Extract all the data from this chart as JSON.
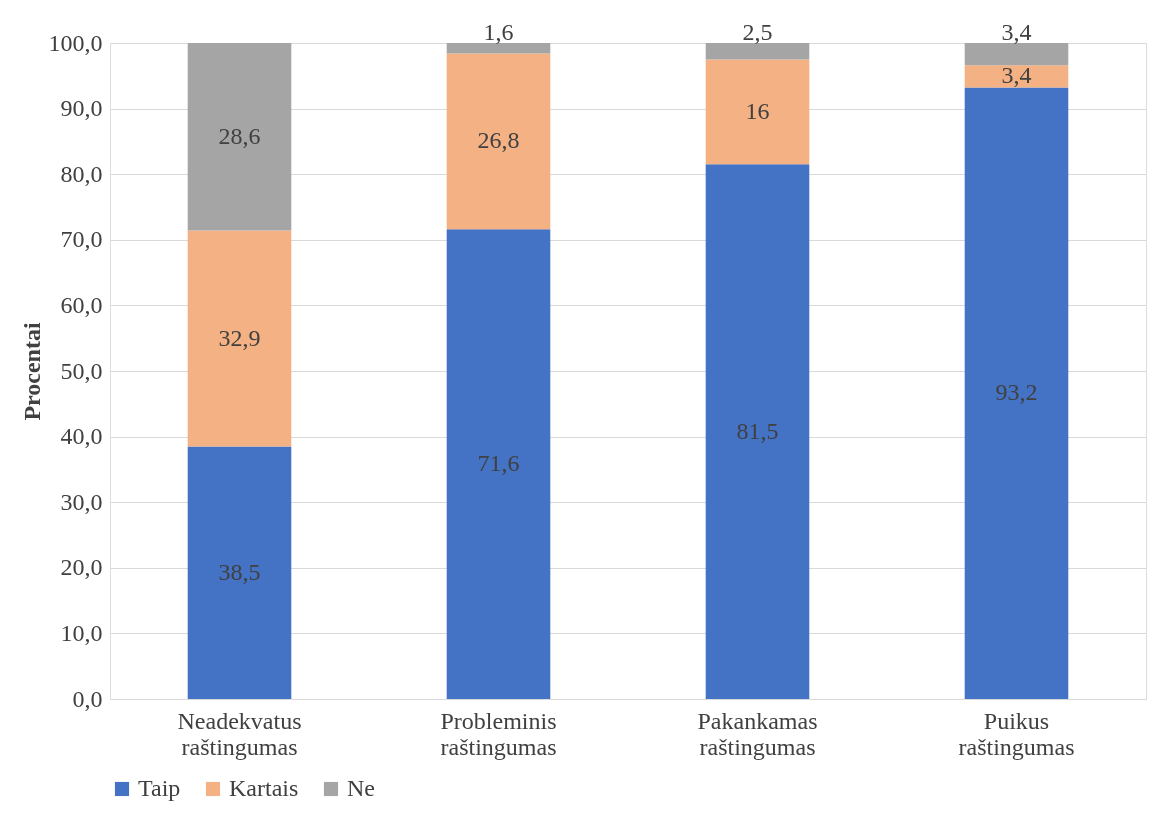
{
  "chart_data": {
    "type": "bar",
    "stacked": true,
    "ylabel": "Procentai",
    "categories": [
      "Neadekvatus raštingumas",
      "Probleminis raštingumas",
      "Pakankamas raštingumas",
      "Puikus raštingumas"
    ],
    "series": [
      {
        "name": "Taip",
        "color": "#4472c4",
        "values": [
          38.5,
          71.6,
          81.5,
          93.2
        ],
        "value_labels": [
          "38,5",
          "71,6",
          "81,5",
          "93,2"
        ]
      },
      {
        "name": "Kartais",
        "color": "#f4b183",
        "values": [
          32.9,
          26.8,
          16,
          3.4
        ],
        "value_labels": [
          "32,9",
          "26,8",
          "16",
          "3,4"
        ]
      },
      {
        "name": "Ne",
        "color": "#a5a5a5",
        "values": [
          28.6,
          1.6,
          2.5,
          3.4
        ],
        "value_labels": [
          "28,6",
          "1,6",
          "2,5",
          "3,4"
        ]
      }
    ],
    "ylim": [
      0,
      100
    ],
    "yticks": [
      {
        "value": 0,
        "label": "0,0"
      },
      {
        "value": 10,
        "label": "10,0"
      },
      {
        "value": 20,
        "label": "20,0"
      },
      {
        "value": 30,
        "label": "30,0"
      },
      {
        "value": 40,
        "label": "40,0"
      },
      {
        "value": 50,
        "label": "50,0"
      },
      {
        "value": 60,
        "label": "60,0"
      },
      {
        "value": 70,
        "label": "70,0"
      },
      {
        "value": 80,
        "label": "80,0"
      },
      {
        "value": 90,
        "label": "90,0"
      },
      {
        "value": 100,
        "label": "100,0"
      }
    ],
    "grid": "y",
    "legend": "bottom"
  }
}
